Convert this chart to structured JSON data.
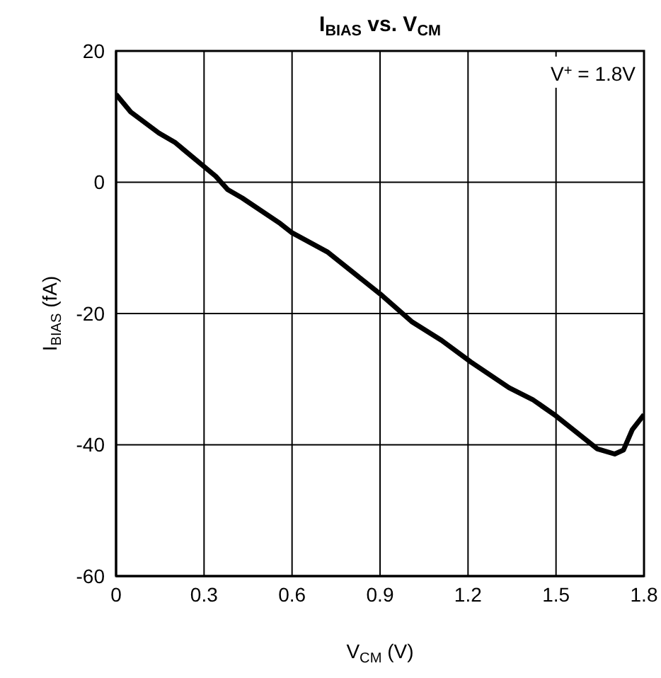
{
  "chart_data": {
    "type": "line",
    "title": "I$_{BIAS}$ vs. V$_{CM}$",
    "xlabel": "V$_{CM}$ (V)",
    "ylabel": "I$_{BIAS}$ (fA)",
    "annotations": [
      "V$^{+}$ = 1.8V"
    ],
    "x": [
      0,
      0.05,
      0.146,
      0.2,
      0.34,
      0.38,
      0.43,
      0.56,
      0.6,
      0.72,
      0.9,
      1.01,
      1.11,
      1.21,
      1.34,
      1.42,
      1.5,
      1.64,
      1.7,
      1.73,
      1.76,
      1.8
    ],
    "series": [
      {
        "color": "#000000",
        "values": [
          13.4,
          10.7,
          7.5,
          6.1,
          0.9,
          -1.1,
          -2.4,
          -6.3,
          -7.7,
          -10.6,
          -17,
          -21.3,
          -24.1,
          -27.4,
          -31.3,
          -33.1,
          -35.6,
          -40.6,
          -41.4,
          -40.8,
          -37.7,
          -35.4
        ]
      }
    ],
    "xlim": [
      0,
      1.8
    ],
    "xticks": [
      0,
      0.3,
      0.6,
      0.9,
      1.2,
      1.5,
      1.8
    ],
    "ylim": [
      -60,
      20
    ],
    "yticks": [
      -60,
      -40,
      -20,
      0,
      20
    ],
    "grid": true,
    "legend": false,
    "marker": "none",
    "line_style": "solid"
  }
}
